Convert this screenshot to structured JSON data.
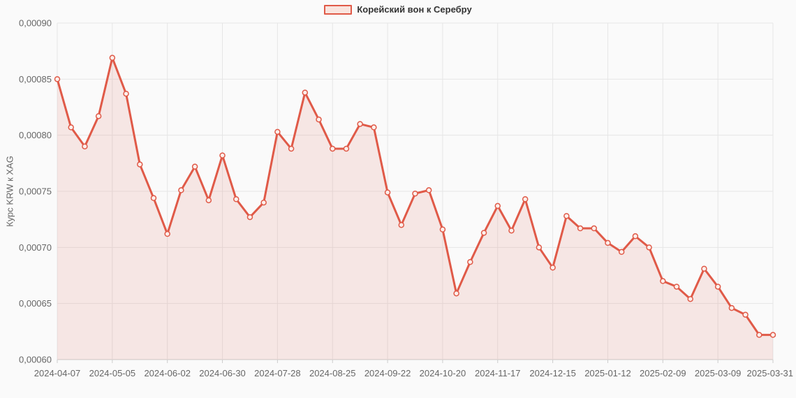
{
  "colors": {
    "line": "#e05a48",
    "area_fill": "rgba(224,90,72,0.12)",
    "marker_fill": "#fcefeb",
    "grid": "#e6e6e6",
    "axis_line": "#cccccc",
    "tick": "#cccccc",
    "label": "#666666",
    "legend_text": "#333333",
    "background": "#fafafa"
  },
  "chart_data": {
    "type": "area",
    "title": "",
    "xlabel": "",
    "ylabel": "Курс KRW к XAG",
    "grid": true,
    "legend_position": "top-center",
    "marker": "hollow-circle",
    "ylim": [
      0.0006,
      0.0009
    ],
    "y_ticks": {
      "values": [
        0.0006,
        0.00065,
        0.0007,
        0.00075,
        0.0008,
        0.00085,
        0.0009
      ],
      "labels": [
        "0,00060",
        "0,00065",
        "0,00070",
        "0,00075",
        "0,00080",
        "0,00085",
        "0,00090"
      ]
    },
    "x_ticks": {
      "every": 4,
      "labels": [
        "2024-04-07",
        "2024-05-05",
        "2024-06-02",
        "2024-06-30",
        "2024-07-28",
        "2024-08-25",
        "2024-09-22",
        "2024-10-20",
        "2024-11-17",
        "2024-12-15",
        "2025-01-12",
        "2025-02-09",
        "2025-03-09",
        "2025-03-31"
      ]
    },
    "series": [
      {
        "name": "Корейский вон к Серебру",
        "x": [
          "2024-04-07",
          "2024-04-14",
          "2024-04-21",
          "2024-04-28",
          "2024-05-05",
          "2024-05-12",
          "2024-05-19",
          "2024-05-26",
          "2024-06-02",
          "2024-06-09",
          "2024-06-16",
          "2024-06-23",
          "2024-06-30",
          "2024-07-07",
          "2024-07-14",
          "2024-07-21",
          "2024-07-28",
          "2024-08-04",
          "2024-08-11",
          "2024-08-18",
          "2024-08-25",
          "2024-09-01",
          "2024-09-08",
          "2024-09-15",
          "2024-09-22",
          "2024-09-29",
          "2024-10-06",
          "2024-10-13",
          "2024-10-20",
          "2024-10-27",
          "2024-11-03",
          "2024-11-10",
          "2024-11-17",
          "2024-11-24",
          "2024-12-01",
          "2024-12-08",
          "2024-12-15",
          "2024-12-22",
          "2024-12-29",
          "2025-01-05",
          "2025-01-12",
          "2025-01-19",
          "2025-01-26",
          "2025-02-02",
          "2025-02-09",
          "2025-02-16",
          "2025-02-23",
          "2025-03-02",
          "2025-03-09",
          "2025-03-16",
          "2025-03-23",
          "2025-03-30",
          "2025-03-31"
        ],
        "values": [
          0.00085,
          0.000807,
          0.00079,
          0.000817,
          0.000869,
          0.000837,
          0.000774,
          0.000744,
          0.000712,
          0.000751,
          0.000772,
          0.000742,
          0.000782,
          0.000743,
          0.000727,
          0.00074,
          0.000803,
          0.000788,
          0.000838,
          0.000814,
          0.000788,
          0.000788,
          0.00081,
          0.000807,
          0.000749,
          0.00072,
          0.000748,
          0.000751,
          0.000716,
          0.000659,
          0.000687,
          0.000713,
          0.000737,
          0.000715,
          0.000743,
          0.0007,
          0.000682,
          0.000728,
          0.000717,
          0.000717,
          0.000704,
          0.000696,
          0.00071,
          0.0007,
          0.00067,
          0.000665,
          0.000654,
          0.000681,
          0.000665,
          0.000646,
          0.00064,
          0.000622,
          0.000622
        ]
      }
    ]
  }
}
